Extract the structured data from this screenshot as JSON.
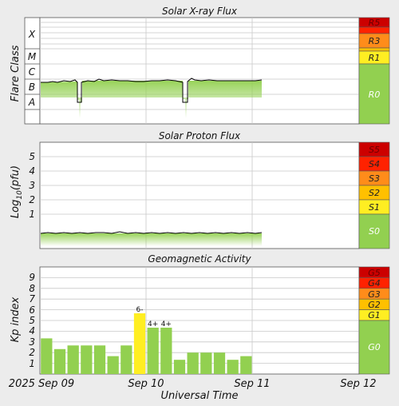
{
  "panels": {
    "xray": {
      "title": "Solar X-ray Flux",
      "ylabel": "Flare Class",
      "classes": [
        "X",
        "M",
        "C",
        "B",
        "A"
      ],
      "scale": [
        {
          "label": "R5",
          "color": "#cc0000"
        },
        {
          "label": "R3",
          "color": "#ff8c1a"
        },
        {
          "label": "R1",
          "color": "#ffee22"
        },
        {
          "label": "R0",
          "color": "#92d050"
        }
      ]
    },
    "proton": {
      "title": "Solar Proton Flux",
      "ylabel_main": "Log",
      "ylabel_sub": "10",
      "ylabel_rest": "(pfu)",
      "ticks": [
        "5",
        "4",
        "3",
        "2",
        "1"
      ],
      "scale": [
        {
          "label": "S5",
          "color": "#cc0000"
        },
        {
          "label": "S4",
          "color": "#ff2200"
        },
        {
          "label": "S3",
          "color": "#ff8c1a"
        },
        {
          "label": "S2",
          "color": "#ffc000"
        },
        {
          "label": "S1",
          "color": "#ffee22"
        },
        {
          "label": "S0",
          "color": "#92d050"
        }
      ]
    },
    "kp": {
      "title": "Geomagnetic Activity",
      "ylabel": "Kp index",
      "ticks": [
        "9",
        "8",
        "7",
        "6",
        "5",
        "4",
        "3",
        "2",
        "1"
      ],
      "scale": [
        {
          "label": "G5",
          "color": "#cc0000"
        },
        {
          "label": "G4",
          "color": "#ff2200"
        },
        {
          "label": "G3",
          "color": "#ff8c1a"
        },
        {
          "label": "G2",
          "color": "#ffc000"
        },
        {
          "label": "G1",
          "color": "#ffee22"
        },
        {
          "label": "G0",
          "color": "#92d050"
        }
      ]
    }
  },
  "xaxis": {
    "label": "Universal Time",
    "dates": [
      "2025 Sep 09",
      "Sep 10",
      "Sep 11",
      "Sep 12"
    ]
  },
  "colors": {
    "bar_normal": "#92d050",
    "bar_storm": "#ffee22",
    "flux_fill": "#92d050",
    "flux_line": "#000000"
  },
  "chart_data": [
    {
      "type": "line",
      "title": "Solar X-ray Flux",
      "ylabel": "Flare Class",
      "yscale": "log",
      "y_categories": [
        "A",
        "B",
        "C",
        "M",
        "X"
      ],
      "x_range": [
        "2025-09-09 00:00",
        "2025-09-12 00:00"
      ],
      "series": [
        {
          "x": [
            "2025-09-09 00:00",
            "2025-09-09 08:00",
            "2025-09-09 10:00",
            "2025-09-10 00:00",
            "2025-09-10 08:00",
            "2025-09-10 09:00",
            "2025-09-11 00:00",
            "2025-09-11 03:00"
          ],
          "values": [
            1.6e-07,
            1.7e-07,
            2e-08,
            1.8e-07,
            1.9e-07,
            2e-08,
            1.6e-07,
            1.6e-07
          ]
        }
      ]
    },
    {
      "type": "line",
      "title": "Solar Proton Flux",
      "ylabel": "Log10(pfu)",
      "ylim": [
        -1.5,
        6
      ],
      "x_range": [
        "2025-09-09 00:00",
        "2025-09-12 00:00"
      ],
      "series": [
        {
          "x": [
            "2025-09-09 00:00",
            "2025-09-11 03:00"
          ],
          "values": [
            -0.85,
            -0.85
          ]
        }
      ]
    },
    {
      "type": "bar",
      "title": "Geomagnetic Activity",
      "ylabel": "Kp index",
      "ylim": [
        0,
        10
      ],
      "categories": [
        "09 00",
        "09 03",
        "09 06",
        "09 09",
        "09 12",
        "09 15",
        "09 18",
        "09 21",
        "10 00",
        "10 03",
        "10 06",
        "10 09",
        "10 12",
        "10 15",
        "10 18",
        "10 21"
      ],
      "values": [
        3.33,
        2.33,
        2.67,
        2.67,
        2.67,
        1.67,
        2.67,
        5.67,
        4.33,
        4.33,
        1.33,
        2.0,
        2.0,
        2.0,
        1.33,
        1.67
      ],
      "labels": [
        "",
        "",
        "",
        "",
        "",
        "",
        "",
        "6-",
        "4+",
        "4+",
        "",
        "",
        "",
        "",
        "",
        ""
      ]
    }
  ]
}
